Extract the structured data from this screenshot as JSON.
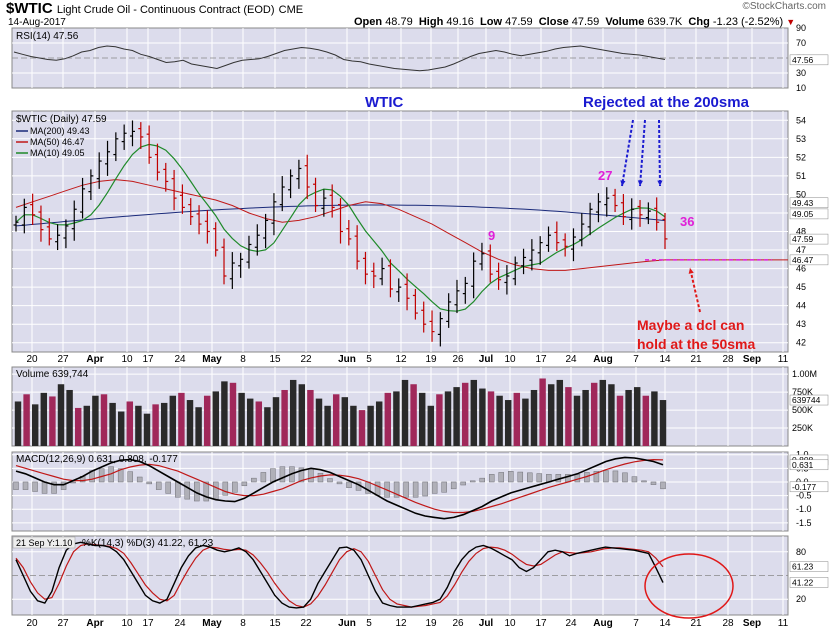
{
  "header": {
    "symbol": "$WTIC",
    "name": "Light Crude Oil - Continuous Contract (EOD)",
    "exchange": "CME",
    "date": "14-Aug-2017",
    "watermark": "©StockCharts.com",
    "open_label": "Open",
    "open": "48.79",
    "high_label": "High",
    "high": "49.16",
    "low_label": "Low",
    "low": "47.59",
    "close_label": "Close",
    "close": "47.59",
    "volume_label": "Volume",
    "volume": "639.7K",
    "chg_label": "Chg",
    "chg": "-1.23 (-2.52%)"
  },
  "colors": {
    "panel_bg": "#dcdcec",
    "grid": "#ffffff",
    "up_bar": "#000000",
    "down_bar": "#c00000",
    "ma200": "#1a2a7a",
    "ma50": "#c01818",
    "ma10": "#1f8a2a",
    "annotation_blue": "#1a1ad0",
    "annotation_magenta": "#e020d8",
    "annotation_red": "#e01818",
    "volume_up": "#2a2a2a",
    "volume_down": "#a0285a"
  },
  "chart_data": [
    {
      "type": "line",
      "panel": "rsi",
      "legend": "RSI(14) 47.56",
      "ylim": [
        10,
        90
      ],
      "ticks": [
        "90",
        "70",
        "50",
        "30",
        "10"
      ],
      "current": "47.56",
      "reference_lines": [
        70,
        30
      ],
      "values": [
        58,
        55,
        52,
        50,
        48,
        47,
        49,
        53,
        58,
        60,
        64,
        66,
        65,
        62,
        60,
        55,
        52,
        48,
        44,
        45,
        47,
        42,
        40,
        38,
        36,
        40,
        44,
        47,
        48,
        49,
        52,
        56,
        60,
        62,
        64,
        63,
        61,
        58,
        54,
        48,
        46,
        45,
        42,
        40,
        38,
        36,
        35,
        34,
        33,
        34,
        36,
        38,
        42,
        47,
        52,
        56,
        58,
        60,
        58,
        55,
        53,
        55,
        57,
        59,
        62,
        64,
        65,
        66,
        64,
        62,
        60,
        58,
        56,
        55,
        54,
        52,
        50,
        48
      ]
    },
    {
      "type": "ohlc",
      "panel": "price",
      "legend": "$WTIC (Daily) 47.59",
      "ylim": [
        41.5,
        54.5
      ],
      "ticks": [
        "54",
        "53",
        "52",
        "51",
        "50",
        "49",
        "48",
        "47",
        "46",
        "45",
        "44",
        "43",
        "42"
      ],
      "x_tick_labels": [
        "20",
        "27",
        "Apr",
        "10",
        "17",
        "24",
        "May",
        "8",
        "15",
        "22",
        "Jun",
        "5",
        "12",
        "19",
        "26",
        "Jul",
        "10",
        "17",
        "24",
        "Aug",
        "7",
        "14",
        "21",
        "28",
        "Sep",
        "11"
      ],
      "close_values": [
        48.5,
        49.3,
        48.9,
        48.1,
        47.6,
        47.8,
        48.3,
        49.2,
        50.3,
        51.0,
        51.8,
        52.3,
        53.0,
        53.3,
        53.4,
        53.1,
        52.0,
        51.2,
        50.7,
        49.8,
        49.3,
        48.8,
        48.4,
        48.0,
        47.0,
        45.6,
        46.3,
        46.5,
        47.3,
        47.8,
        48.6,
        49.6,
        50.4,
        51.0,
        51.4,
        50.4,
        49.4,
        49.8,
        49.3,
        48.0,
        47.6,
        46.4,
        45.7,
        45.6,
        46.0,
        44.9,
        45.0,
        44.4,
        43.6,
        43.0,
        42.6,
        43.3,
        44.2,
        44.8,
        45.2,
        46.4,
        46.8,
        45.7,
        45.4,
        45.6,
        46.3,
        46.6,
        47.0,
        47.4,
        47.8,
        47.4,
        47.2,
        47.7,
        48.4,
        49.2,
        49.6,
        49.8,
        49.4,
        48.8,
        49.2,
        48.9,
        49.1,
        48.5,
        47.6
      ],
      "series": [
        {
          "name": "MA(200) 49.43",
          "start": 48.3,
          "end": 49.43
        },
        {
          "name": "MA(50) 46.47",
          "end": 46.47
        },
        {
          "name": "MA(10) 49.05",
          "end": 49.05
        }
      ],
      "last_labels": [
        "49.43",
        "49.05",
        "47.59",
        "46.47"
      ],
      "annotations": {
        "wtic": "WTIC",
        "rejected": "Rejected at the 200sma",
        "nine": "9",
        "twentyseven": "27",
        "thirtysix": "36",
        "maybe_line1": "Maybe a dcl can",
        "maybe_line2": "hold at the 50sma"
      }
    },
    {
      "type": "bar",
      "panel": "volume",
      "legend": "Volume 639,744",
      "ticks": [
        "1.00M",
        "750K",
        "500K",
        "250K"
      ],
      "current": "639744",
      "ylim": [
        0,
        1100000
      ],
      "values": [
        620,
        720,
        580,
        740,
        690,
        860,
        780,
        530,
        560,
        700,
        720,
        600,
        480,
        620,
        560,
        450,
        580,
        600,
        700,
        740,
        640,
        540,
        700,
        760,
        900,
        880,
        740,
        660,
        620,
        540,
        680,
        780,
        920,
        860,
        780,
        660,
        560,
        720,
        680,
        560,
        500,
        560,
        620,
        740,
        760,
        920,
        860,
        740,
        560,
        720,
        760,
        820,
        880,
        920,
        800,
        760,
        700,
        640,
        740,
        660,
        780,
        940,
        860,
        920,
        820,
        700,
        780,
        880,
        920,
        860,
        700,
        780,
        820,
        700,
        760,
        640
      ]
    },
    {
      "type": "line",
      "panel": "macd",
      "legend_prefix": "MACD(12,26,9)",
      "legend_macd": "0.631",
      "legend_signal": "0.808",
      "legend_hist": "-0.177",
      "ylim": [
        -1.8,
        1.1
      ],
      "ticks": [
        "1.0",
        "0.5",
        "0.0",
        "-0.5",
        "-1.0",
        "-1.5"
      ],
      "last_labels": [
        "0.808",
        "0.631",
        "-0.177"
      ],
      "macd": [
        0.4,
        0.3,
        0.15,
        0.0,
        -0.1,
        -0.1,
        0.05,
        0.2,
        0.4,
        0.55,
        0.7,
        0.8,
        0.82,
        0.75,
        0.6,
        0.4,
        0.2,
        0.0,
        -0.2,
        -0.4,
        -0.55,
        -0.65,
        -0.7,
        -0.72,
        -0.6,
        -0.4,
        -0.2,
        0.0,
        0.15,
        0.3,
        0.42,
        0.5,
        0.45,
        0.35,
        0.2,
        0.05,
        -0.1,
        -0.3,
        -0.5,
        -0.7,
        -0.85,
        -1.0,
        -1.15,
        -1.25,
        -1.3,
        -1.35,
        -1.3,
        -1.2,
        -1.05,
        -0.9,
        -0.7,
        -0.55,
        -0.4,
        -0.3,
        -0.2,
        -0.1,
        0.0,
        0.1,
        0.2,
        0.3,
        0.45,
        0.6,
        0.75,
        0.85,
        0.9,
        0.88,
        0.82,
        0.75,
        0.63
      ],
      "signal": [
        0.6,
        0.5,
        0.4,
        0.3,
        0.2,
        0.1,
        0.05,
        0.05,
        0.1,
        0.2,
        0.3,
        0.45,
        0.55,
        0.62,
        0.65,
        0.6,
        0.5,
        0.4,
        0.25,
        0.1,
        -0.05,
        -0.2,
        -0.35,
        -0.45,
        -0.5,
        -0.5,
        -0.45,
        -0.35,
        -0.25,
        -0.1,
        0.05,
        0.15,
        0.22,
        0.26,
        0.25,
        0.2,
        0.12,
        0.0,
        -0.15,
        -0.3,
        -0.45,
        -0.6,
        -0.75,
        -0.88,
        -1.0,
        -1.08,
        -1.12,
        -1.12,
        -1.08,
        -1.0,
        -0.9,
        -0.8,
        -0.68,
        -0.56,
        -0.44,
        -0.32,
        -0.2,
        -0.1,
        0.0,
        0.1,
        0.2,
        0.32,
        0.45,
        0.56,
        0.66,
        0.74,
        0.79,
        0.82,
        0.81
      ]
    },
    {
      "type": "line",
      "panel": "stochastics",
      "legend": "%K(14,3) %D(3) 41.22, 61.23",
      "date_tag": "21 Sep Y:1.10",
      "ylim": [
        0,
        100
      ],
      "ticks": [
        "80",
        "20"
      ],
      "reference_lines": [
        80,
        50,
        20
      ],
      "last_labels": [
        "61.23",
        "41.22"
      ],
      "k": [
        70,
        50,
        30,
        18,
        15,
        30,
        60,
        82,
        90,
        92,
        90,
        88,
        88,
        86,
        80,
        70,
        55,
        40,
        25,
        18,
        15,
        20,
        40,
        60,
        75,
        85,
        88,
        86,
        82,
        80,
        82,
        85,
        80,
        70,
        55,
        40,
        25,
        15,
        10,
        9,
        10,
        20,
        40,
        55,
        70,
        85,
        86,
        82,
        70,
        50,
        30,
        15,
        12,
        10,
        10,
        10,
        12,
        14,
        16,
        20,
        35,
        55,
        70,
        80,
        86,
        88,
        85,
        80,
        75,
        70,
        60,
        55,
        60,
        70,
        80,
        82,
        80,
        75,
        78,
        80,
        82,
        84,
        86,
        85,
        84,
        83,
        82,
        80,
        78,
        60,
        41
      ],
      "d": [
        72,
        60,
        42,
        28,
        20,
        22,
        40,
        62,
        80,
        88,
        90,
        89,
        88,
        87,
        84,
        78,
        66,
        52,
        38,
        28,
        20,
        18,
        25,
        42,
        58,
        72,
        82,
        86,
        85,
        83,
        82,
        83,
        82,
        76,
        66,
        54,
        40,
        28,
        18,
        12,
        10,
        14,
        24,
        38,
        54,
        70,
        80,
        84,
        80,
        68,
        50,
        32,
        20,
        14,
        12,
        10,
        11,
        12,
        14,
        16,
        24,
        38,
        54,
        68,
        78,
        84,
        86,
        85,
        82,
        77,
        70,
        64,
        62,
        64,
        70,
        76,
        80,
        79,
        78,
        79,
        80,
        82,
        84,
        85,
        85,
        84,
        83,
        82,
        80,
        72,
        61
      ]
    }
  ]
}
